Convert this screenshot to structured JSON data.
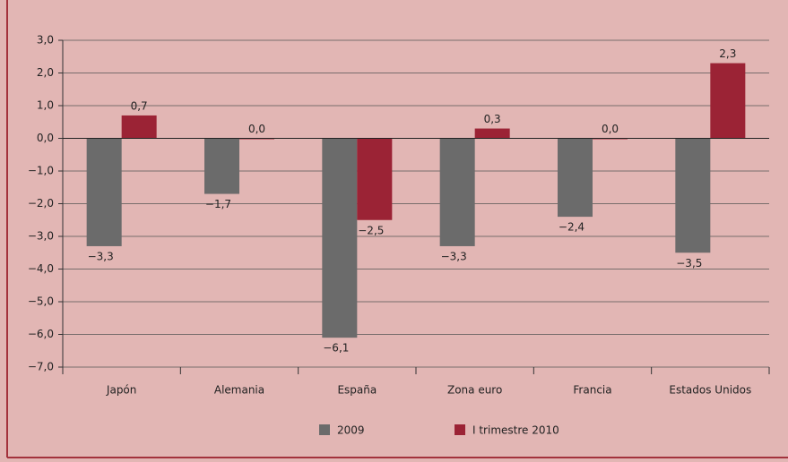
{
  "chart_data": {
    "type": "bar",
    "categories": [
      "Japón",
      "Alemania",
      "España",
      "Zona euro",
      "Francia",
      "Estados Unidos"
    ],
    "series": [
      {
        "name": "2009",
        "color": "#6b6b6b",
        "values": [
          -3.3,
          -1.7,
          -6.1,
          -3.3,
          -2.4,
          -3.5
        ],
        "value_labels": [
          "−3,3",
          "−1,7",
          "−6,1",
          "−3,3",
          "−2,4",
          "−3,5"
        ]
      },
      {
        "name": "I trimestre 2010",
        "color": "#9b2335",
        "values": [
          0.7,
          0.0,
          -2.5,
          0.3,
          0.0,
          2.3
        ],
        "value_labels": [
          "0,7",
          "0,0",
          "−2,5",
          "0,3",
          "0,0",
          "2,3"
        ]
      }
    ],
    "ylim": [
      -7,
      3
    ],
    "yticks": [
      {
        "value": 3,
        "label": "3,0"
      },
      {
        "value": 2,
        "label": "2,0"
      },
      {
        "value": 1,
        "label": "1,0"
      },
      {
        "value": 0,
        "label": "0,0"
      },
      {
        "value": -1,
        "label": "−1,0"
      },
      {
        "value": -2,
        "label": "−2,0"
      },
      {
        "value": -3,
        "label": "−3,0"
      },
      {
        "value": -4,
        "label": "−4,0"
      },
      {
        "value": -5,
        "label": "−5,0"
      },
      {
        "value": -6,
        "label": "−6,0"
      },
      {
        "value": -7,
        "label": "−7,0"
      }
    ],
    "grid": true,
    "legend": "bottom"
  }
}
